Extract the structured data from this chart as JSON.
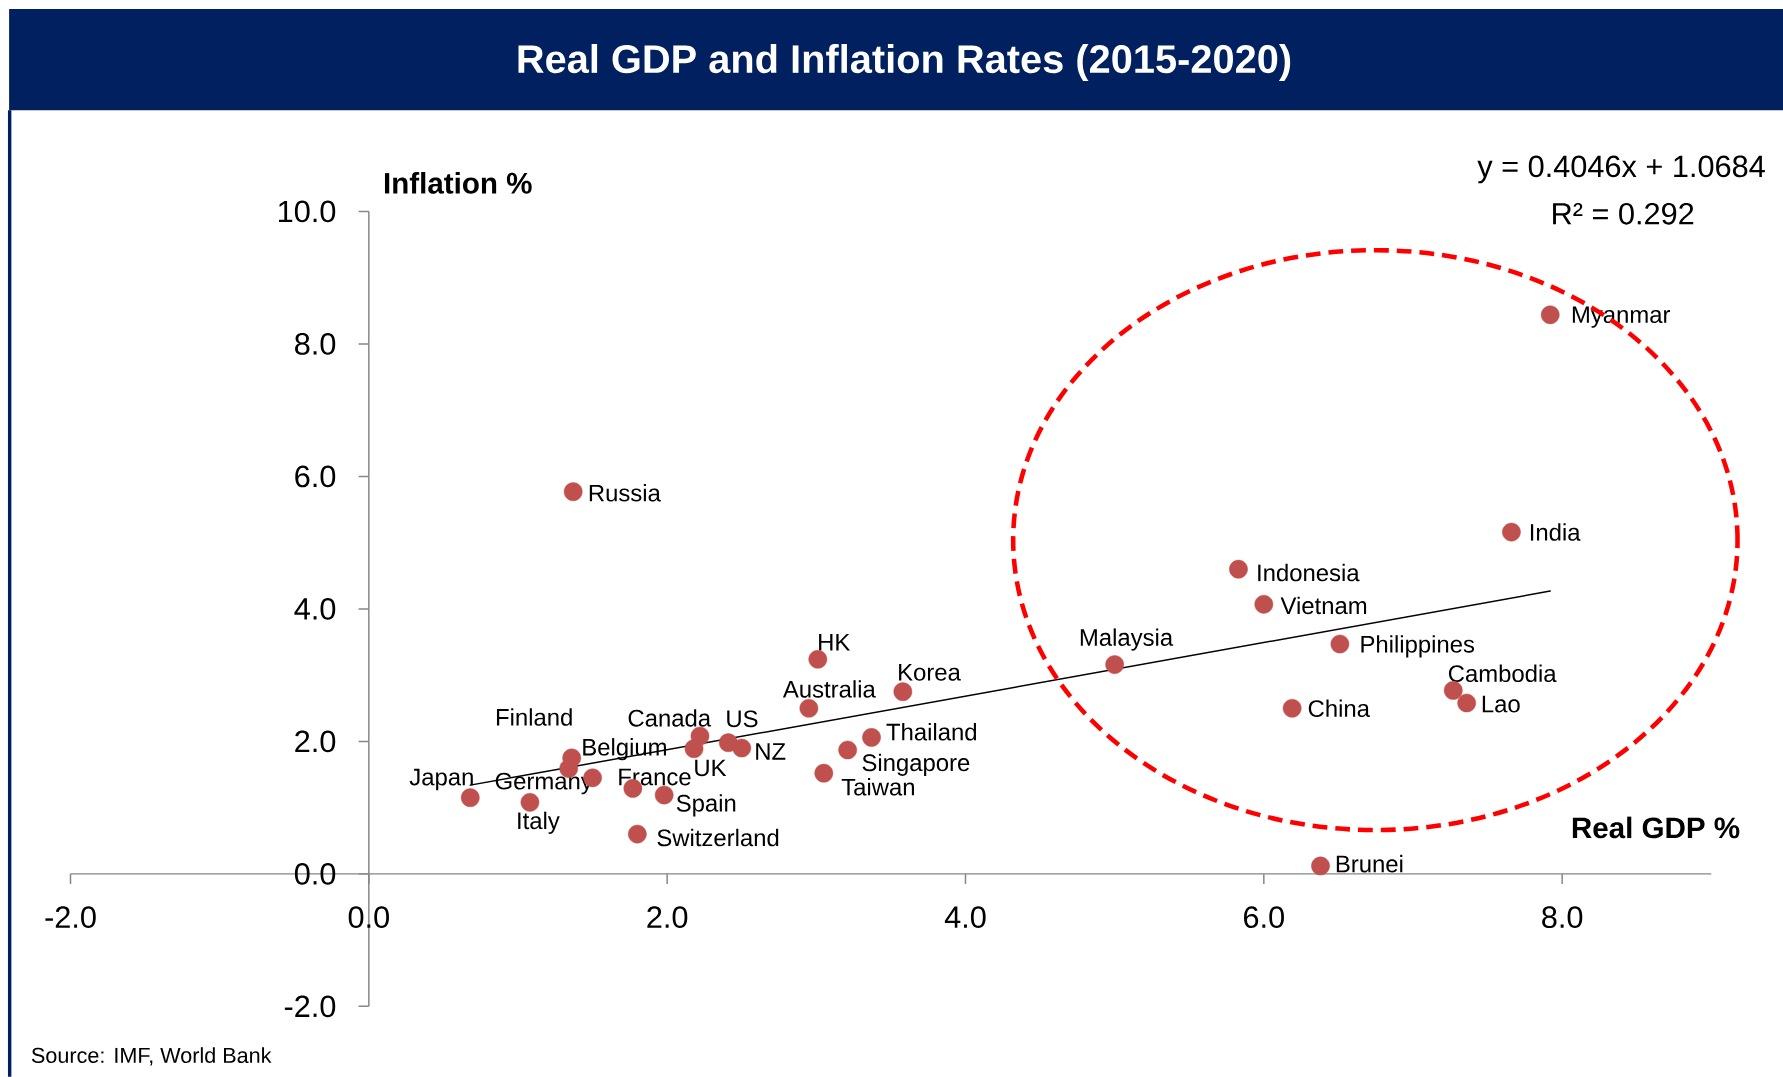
{
  "chart_data": {
    "type": "scatter",
    "title": "Real GDP and Inflation Rates (2015-2020)",
    "xlabel": "Real GDP %",
    "ylabel": "Inflation %",
    "series": [
      {
        "color": "#c0504d",
        "marker": "circle",
        "x": [
          0.68,
          1.08,
          1.36,
          1.34,
          1.5,
          1.77,
          1.98,
          1.8,
          2.18,
          2.22,
          2.41,
          2.5,
          2.95,
          3.01,
          3.58,
          3.37,
          3.21,
          3.05,
          1.37,
          5.0,
          5.83,
          6.0,
          6.51,
          6.19,
          7.27,
          7.36,
          7.66,
          7.92,
          6.38
        ],
        "values": [
          1.15,
          1.08,
          1.75,
          1.59,
          1.45,
          1.29,
          1.19,
          0.6,
          1.89,
          2.08,
          1.98,
          1.9,
          2.5,
          3.24,
          2.75,
          2.06,
          1.87,
          1.52,
          5.77,
          3.16,
          4.6,
          4.07,
          3.47,
          2.5,
          2.77,
          2.58,
          5.16,
          8.44,
          0.12
        ]
      },
      {
        "type": "line",
        "color": "#000000",
        "marker": "none",
        "x": [
          0.68,
          7.92
        ],
        "values": [
          1.34,
          4.27
        ]
      }
    ],
    "xlim": [
      -2,
      9
    ],
    "ylim": [
      -2,
      10
    ],
    "xticks": [
      {
        "value": -2,
        "label": "-2.0"
      },
      {
        "value": 0,
        "label": "0.0"
      },
      {
        "value": 2,
        "label": "2.0"
      },
      {
        "value": 4,
        "label": "4.0"
      },
      {
        "value": 6,
        "label": "6.0"
      },
      {
        "value": 8,
        "label": "8.0"
      }
    ],
    "yticks": [
      {
        "value": -2,
        "label": "-2.0"
      },
      {
        "value": 0,
        "label": "0.0"
      },
      {
        "value": 2,
        "label": "2.0"
      },
      {
        "value": 4,
        "label": "4.0"
      },
      {
        "value": 6,
        "label": "6.0"
      },
      {
        "value": 8,
        "label": "8.0"
      },
      {
        "value": 10,
        "label": "10.0"
      }
    ],
    "annotations": [
      {
        "text": "Japan",
        "x": 0.68,
        "y": 1.15
      },
      {
        "text": "Italy",
        "x": 1.08,
        "y": 1.08
      },
      {
        "text": "Finland",
        "x": 1.36,
        "y": 1.75
      },
      {
        "text": "Belgium",
        "x": 1.34,
        "y": 1.59
      },
      {
        "text": "Germany",
        "x": 1.5,
        "y": 1.45
      },
      {
        "text": "France",
        "x": 1.77,
        "y": 1.29
      },
      {
        "text": "Spain",
        "x": 1.98,
        "y": 1.19
      },
      {
        "text": "Switzerland",
        "x": 1.8,
        "y": 0.6
      },
      {
        "text": "UK",
        "x": 2.18,
        "y": 1.89
      },
      {
        "text": "Canada",
        "x": 2.22,
        "y": 2.08
      },
      {
        "text": "US",
        "x": 2.41,
        "y": 1.98
      },
      {
        "text": "NZ",
        "x": 2.5,
        "y": 1.9
      },
      {
        "text": "Australia",
        "x": 2.95,
        "y": 2.5
      },
      {
        "text": "HK",
        "x": 3.01,
        "y": 3.24
      },
      {
        "text": "Korea",
        "x": 3.58,
        "y": 2.75
      },
      {
        "text": "Thailand",
        "x": 3.37,
        "y": 2.06
      },
      {
        "text": "Singapore",
        "x": 3.21,
        "y": 1.87
      },
      {
        "text": "Taiwan",
        "x": 3.05,
        "y": 1.52
      },
      {
        "text": "Russia",
        "x": 1.37,
        "y": 5.77
      },
      {
        "text": "Malaysia",
        "x": 5.0,
        "y": 3.16
      },
      {
        "text": "Indonesia",
        "x": 5.83,
        "y": 4.6
      },
      {
        "text": "Vietnam",
        "x": 6.0,
        "y": 4.07
      },
      {
        "text": "Philippines",
        "x": 6.51,
        "y": 3.47
      },
      {
        "text": "China",
        "x": 6.19,
        "y": 2.5
      },
      {
        "text": "Cambodia",
        "x": 7.27,
        "y": 2.77
      },
      {
        "text": "Lao",
        "x": 7.36,
        "y": 2.58
      },
      {
        "text": "India",
        "x": 7.66,
        "y": 5.16
      },
      {
        "text": "Myanmar",
        "x": 7.92,
        "y": 8.44
      },
      {
        "text": "Brunei",
        "x": 6.38,
        "y": 0.12
      },
      "y = 0.4046x + 1.0684",
      "R² = 0.292",
      "Source: IMF, World Bank"
    ]
  }
}
